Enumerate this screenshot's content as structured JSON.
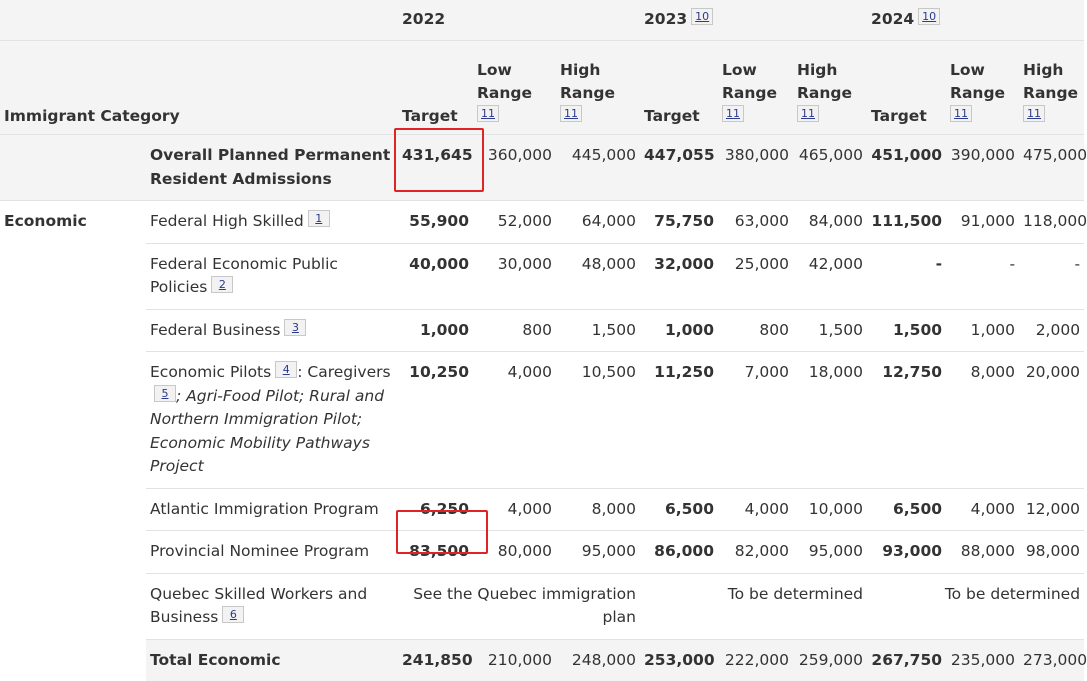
{
  "header": {
    "category_label": "Immigrant Category",
    "years": [
      {
        "year": "2022",
        "note": ""
      },
      {
        "year": "2023",
        "note": "10"
      },
      {
        "year": "2024",
        "note": "10"
      }
    ],
    "target_label": "Target",
    "low_label": "Low Range",
    "high_label": "High Range",
    "range_note": "11"
  },
  "overall": {
    "label": "Overall Planned Permanent Resident Admissions",
    "values": [
      "431,645",
      "360,000",
      "445,000",
      "447,055",
      "380,000",
      "465,000",
      "451,000",
      "390,000",
      "475,000"
    ]
  },
  "group": "Economic",
  "rows": [
    {
      "label": "Federal High Skilled",
      "note": "1",
      "values": [
        "55,900",
        "52,000",
        "64,000",
        "75,750",
        "63,000",
        "84,000",
        "111,500",
        "91,000",
        "118,000"
      ]
    },
    {
      "label": "Federal Economic Public Policies",
      "note": "2",
      "values": [
        "40,000",
        "30,000",
        "48,000",
        "32,000",
        "25,000",
        "42,000",
        "-",
        "-",
        "-"
      ]
    },
    {
      "label": "Federal Business",
      "note": "3",
      "values": [
        "1,000",
        "800",
        "1,500",
        "1,000",
        "800",
        "1,500",
        "1,500",
        "1,000",
        "2,000"
      ]
    },
    {
      "label_a": "Economic Pilots",
      "note_a": "4",
      "label_b": ": Caregivers",
      "note_b": "5",
      "label_c": "; Agri-Food Pilot; Rural and Northern Immigration Pilot; Economic Mobility Pathways Project",
      "values": [
        "10,250",
        "4,000",
        "10,500",
        "11,250",
        "7,000",
        "18,000",
        "12,750",
        "8,000",
        "20,000"
      ]
    },
    {
      "label": "Atlantic Immigration Program",
      "values": [
        "6,250",
        "4,000",
        "8,000",
        "6,500",
        "4,000",
        "10,000",
        "6,500",
        "4,000",
        "12,000"
      ]
    },
    {
      "label": "Provincial Nominee Program",
      "values": [
        "83,500",
        "80,000",
        "95,000",
        "86,000",
        "82,000",
        "95,000",
        "93,000",
        "88,000",
        "98,000"
      ]
    }
  ],
  "quebec": {
    "label": "Quebec Skilled Workers and Business",
    "note": "6",
    "text_2022": "See the Quebec immigration plan",
    "text_2023": "To be determined",
    "text_2024": "To be determined"
  },
  "total": {
    "label": "Total Economic",
    "values": [
      "241,850",
      "210,000",
      "248,000",
      "253,000",
      "222,000",
      "259,000",
      "267,750",
      "235,000",
      "273,000"
    ]
  },
  "colors": {
    "highlight": "#e02424",
    "header_bg": "#f4f4f4",
    "link": "#2a3a8f"
  }
}
